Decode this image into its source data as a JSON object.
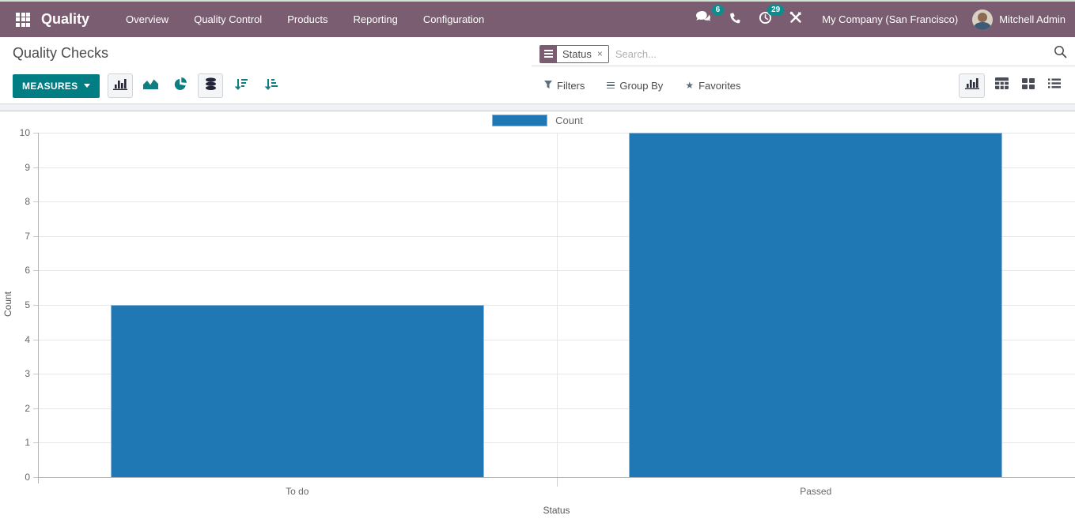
{
  "brand": {
    "app_name": "Quality",
    "navbar_color": "#7b5d72",
    "accent_teal": "#017e84",
    "badge_teal": "#0c8c8c"
  },
  "nav": {
    "items": [
      {
        "label": "Overview"
      },
      {
        "label": "Quality Control"
      },
      {
        "label": "Products"
      },
      {
        "label": "Reporting"
      },
      {
        "label": "Configuration"
      }
    ]
  },
  "topbar_right": {
    "messages_badge": "6",
    "activities_badge": "29",
    "company": "My Company (San Francisco)",
    "user": "Mitchell Admin"
  },
  "control_panel": {
    "title": "Quality Checks",
    "measures_label": "MEASURES",
    "search": {
      "facet_label": "Status",
      "facet_close": "×",
      "placeholder": "Search..."
    },
    "filter_menus": [
      {
        "label": "Filters"
      },
      {
        "label": "Group By"
      },
      {
        "label": "Favorites"
      }
    ]
  },
  "chart_data": {
    "type": "bar",
    "categories": [
      "To do",
      "Passed"
    ],
    "series": [
      {
        "name": "Count",
        "values": [
          5,
          10
        ],
        "color": "#1f77b4"
      }
    ],
    "title": "",
    "xlabel": "Status",
    "ylabel": "Count",
    "ylim": [
      0,
      10
    ],
    "ytick_step": 1,
    "grid": true,
    "legend_position": "top"
  }
}
